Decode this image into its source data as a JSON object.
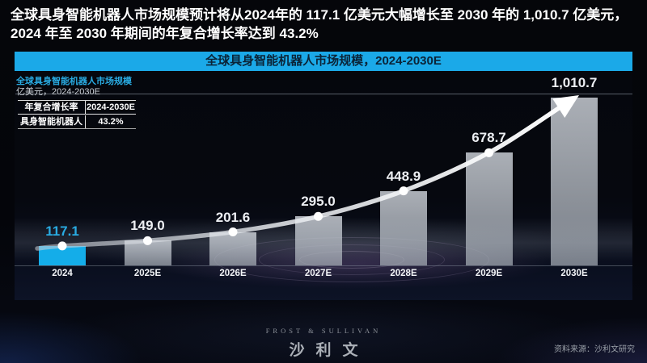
{
  "headline": {
    "line1": "全球具身智能机器人市场规模预计将从2024年的 117.1 亿美元大幅增长至 2030 年的 1,010.7 亿美元，",
    "line2": "2024 年至 2030 年期间的年复合增长率达到 43.2%"
  },
  "banner": {
    "title": "全球具身智能机器人市场规模，2024-2030E"
  },
  "chart_meta": {
    "subtitle": "全球具身智能机器人市场规模",
    "unit": "亿美元，2024-2030E"
  },
  "cagr_table": {
    "col1_header": "年复合增长率",
    "col2_header": "2024-2030E",
    "row1_col1": "具身智能机器人",
    "row1_col2": "43.2%"
  },
  "chart_data": {
    "type": "bar",
    "title": "全球具身智能机器人市场规模，2024-2030E",
    "ylabel": "亿美元",
    "categories": [
      "2024",
      "2025E",
      "2026E",
      "2027E",
      "2028E",
      "2029E",
      "2030E"
    ],
    "values": [
      117.1,
      149.0,
      201.6,
      295.0,
      448.9,
      678.7,
      1010.7
    ],
    "value_labels": [
      "117.1",
      "149.0",
      "201.6",
      "295.0",
      "448.9",
      "678.7",
      "1,010.7"
    ],
    "ylim": [
      0,
      1010.7
    ],
    "highlight_index": 0,
    "trend_line_with_arrow": true,
    "legend": "none",
    "grid": "top-line-only",
    "colors": {
      "highlight_bar": "#14ade9",
      "bar": "#aab0b8",
      "accent_text": "#29abe2",
      "trend_line": "#ffffff",
      "banner_bg": "#1ba9e8"
    }
  },
  "footer": {
    "logo_en": "FROST & SULLIVAN",
    "logo_cn": "沙利文",
    "source": "资料来源：沙利文研究"
  }
}
